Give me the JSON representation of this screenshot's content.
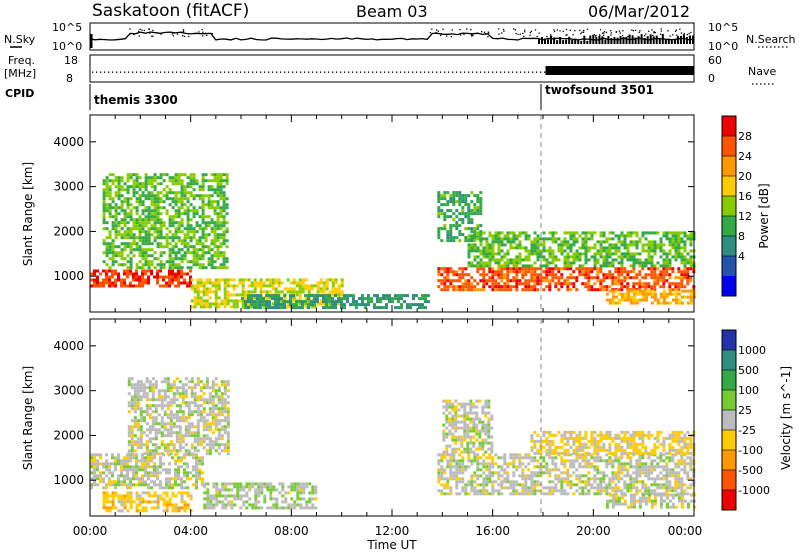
{
  "header": {
    "station": "Saskatoon (fitACF)",
    "beam": "Beam 03",
    "date": "06/Mar/2012"
  },
  "top_panels": {
    "nsky_label": "N.Sky",
    "nsky_ticks": [
      "10^5",
      "10^0"
    ],
    "nsearch_label": "N.Search",
    "nsearch_ticks": [
      "10^5",
      "10^0"
    ],
    "freq_label": "Freq.",
    "freq_unit": "[MHz]",
    "freq_ticks": [
      "18",
      "8"
    ],
    "nave_label": "Nave",
    "nave_ticks": [
      "60",
      "0"
    ],
    "cpid_label": "CPID",
    "cpid_segments": [
      {
        "name": "themis 3300",
        "start_hour": 0
      },
      {
        "name": "twofsound 3501",
        "start_hour": 18
      }
    ]
  },
  "x_axis": {
    "label": "Time UT",
    "ticks": [
      "00:00",
      "04:00",
      "08:00",
      "12:00",
      "16:00",
      "20:00",
      "00:00"
    ]
  },
  "power_colorbar": {
    "title": "Power [dB]",
    "ticks": [
      "28",
      "24",
      "20",
      "16",
      "12",
      "8",
      "4"
    ],
    "colors": [
      "#ee0000",
      "#ff5500",
      "#ff9900",
      "#ffcc00",
      "#88cc00",
      "#33aa44",
      "#2e8f80",
      "#2255aa",
      "#0000ee"
    ]
  },
  "velocity_colorbar": {
    "title": "Velocity [m s^-1]",
    "ticks": [
      "1000",
      "500",
      "100",
      "25",
      "-25",
      "-100",
      "-500",
      "-1000"
    ],
    "colors": [
      "#2233aa",
      "#2e8f80",
      "#33aa44",
      "#77cc33",
      "#bbbbbb",
      "#ffcc00",
      "#ff9900",
      "#ff5500",
      "#ee0000"
    ]
  },
  "chart_data": [
    {
      "type": "heatmap",
      "title": "Power",
      "ylabel": "Slant Range [km]",
      "xlabel": "Time UT",
      "ylim": [
        200,
        4600
      ],
      "yticks": [
        "1000",
        "2000",
        "3000",
        "4000"
      ],
      "xlim_hours": [
        0,
        24
      ],
      "colorbar_label": "Power [dB]",
      "colorbar_range": [
        0,
        32
      ],
      "regions": [
        {
          "t0": 0.0,
          "t1": 4.0,
          "r0": 750,
          "r1": 1150,
          "value": 28
        },
        {
          "t0": 0.5,
          "t1": 5.5,
          "r0": 1200,
          "r1": 3300,
          "value": 14
        },
        {
          "t0": 4.0,
          "t1": 10.0,
          "r0": 300,
          "r1": 950,
          "value": 18
        },
        {
          "t0": 6.0,
          "t1": 13.5,
          "r0": 300,
          "r1": 600,
          "value": 10
        },
        {
          "t0": 13.8,
          "t1": 24.0,
          "r0": 700,
          "r1": 1200,
          "value": 27
        },
        {
          "t0": 15.0,
          "t1": 24.0,
          "r0": 1200,
          "r1": 2000,
          "value": 14
        },
        {
          "t0": 13.8,
          "t1": 15.5,
          "r0": 1800,
          "r1": 2900,
          "value": 12
        },
        {
          "t0": 20.5,
          "t1": 24.0,
          "r0": 400,
          "r1": 700,
          "value": 22
        }
      ]
    },
    {
      "type": "heatmap",
      "title": "Velocity",
      "ylabel": "Slant Range [km]",
      "xlabel": "Time UT",
      "ylim": [
        200,
        4600
      ],
      "yticks": [
        "1000",
        "2000",
        "3000",
        "4000"
      ],
      "xlim_hours": [
        0,
        24
      ],
      "colorbar_label": "Velocity [m s^-1]",
      "colorbar_range": [
        -1000,
        1000
      ],
      "regions": [
        {
          "t0": 0.0,
          "t1": 4.5,
          "r0": 800,
          "r1": 1600,
          "value": 0
        },
        {
          "t0": 0.5,
          "t1": 4.0,
          "r0": 300,
          "r1": 750,
          "value": -200
        },
        {
          "t0": 1.5,
          "t1": 5.5,
          "r0": 1600,
          "r1": 3300,
          "value": 0
        },
        {
          "t0": 4.5,
          "t1": 9.0,
          "r0": 350,
          "r1": 950,
          "value": 60
        },
        {
          "t0": 13.8,
          "t1": 24.0,
          "r0": 700,
          "r1": 1600,
          "value": 0
        },
        {
          "t0": 14.0,
          "t1": 16.0,
          "r0": 1600,
          "r1": 2800,
          "value": 0
        },
        {
          "t0": 17.5,
          "t1": 24.0,
          "r0": 1600,
          "r1": 2100,
          "value": -150
        },
        {
          "t0": 20.5,
          "t1": 24.0,
          "r0": 400,
          "r1": 700,
          "value": 0
        }
      ]
    }
  ]
}
